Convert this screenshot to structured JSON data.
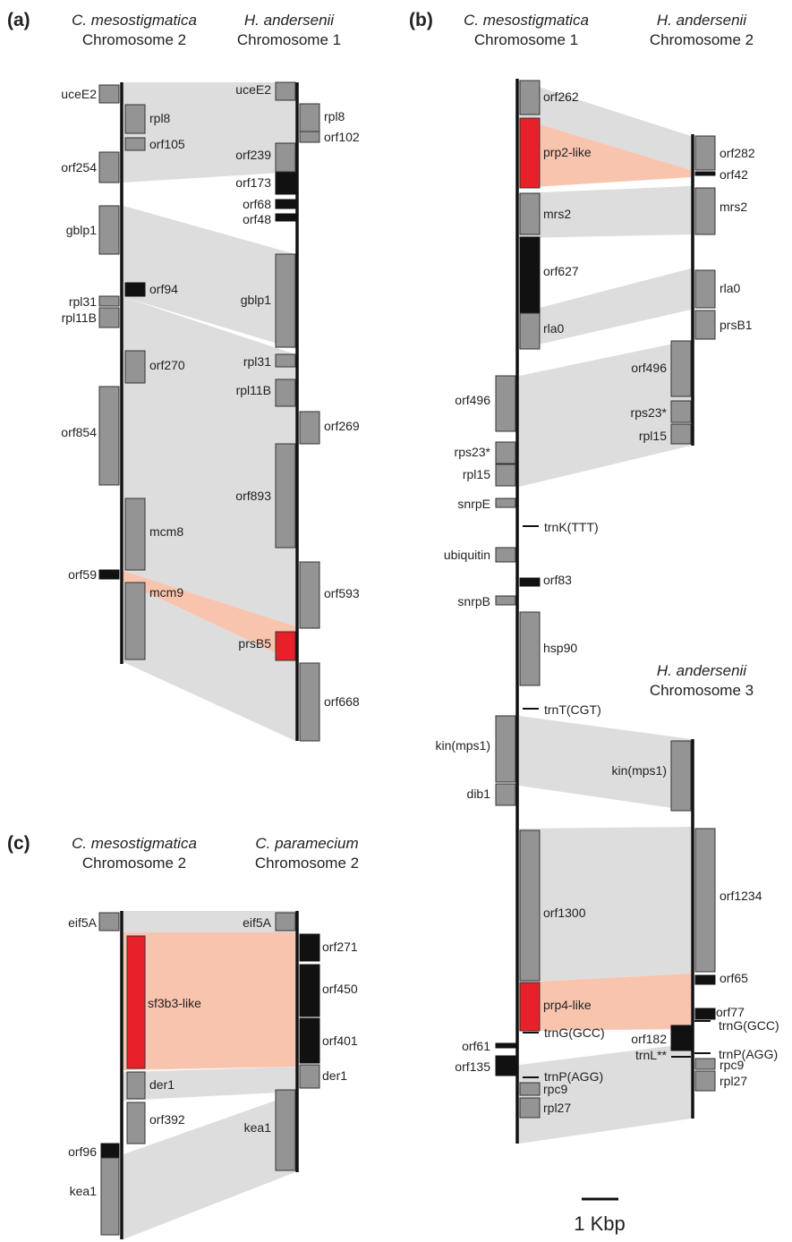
{
  "panels": [
    {
      "letter": "(a)",
      "left_species": "C. mesostigmatica",
      "left_chrom": "Chromosome 2",
      "right_species": "H. andersenii",
      "right_chrom": "Chromosome 1"
    },
    {
      "letter": "(b)",
      "left_species": "C. mesostigmatica",
      "left_chrom": "Chromosome 1",
      "right_species": "H. andersenii",
      "right_chrom": "Chromosome 2",
      "right2_species": "H. andersenii",
      "right2_chrom": "Chromosome 3"
    },
    {
      "letter": "(c)",
      "left_species": "C. mesostigmatica",
      "left_chrom": "Chromosome 2",
      "right_species": "C. paramecium",
      "right_chrom": "Chromosome 2"
    }
  ],
  "genes": {
    "a_left": [
      "uceE2",
      "rpl8",
      "orf105",
      "orf254",
      "gblp1",
      "orf94",
      "rpl31",
      "rpl11B",
      "orf270",
      "orf854",
      "mcm8",
      "orf59",
      "mcm9"
    ],
    "a_right": [
      "uceE2",
      "rpl8",
      "orf102",
      "orf239",
      "orf173",
      "orf68",
      "orf48",
      "gblp1",
      "rpl31",
      "rpl11B",
      "orf269",
      "orf893",
      "orf593",
      "prsB5",
      "orf668"
    ],
    "b_left": [
      "orf262",
      "prp2-like",
      "mrs2",
      "orf627",
      "rla0",
      "orf496",
      "rps23*",
      "rpl15",
      "snrpE",
      "trnK(TTT)",
      "ubiquitin",
      "orf83",
      "snrpB",
      "hsp90",
      "trnT(CGT)",
      "kin(mps1)",
      "dib1",
      "orf1300",
      "prp4-like",
      "trnG(GCC)",
      "orf61",
      "orf135",
      "trnP(AGG)",
      "rpc9",
      "rpl27"
    ],
    "b_right": [
      "orf282",
      "orf42",
      "mrs2",
      "rla0",
      "prsB1",
      "orf496",
      "rps23*",
      "rpl15"
    ],
    "b_right2": [
      "kin(mps1)",
      "orf1234",
      "orf65",
      "orf77",
      "trnG(GCC)",
      "orf182",
      "trnP(AGG)",
      "trnL**",
      "rpc9",
      "rpl27"
    ],
    "c_left": [
      "eif5A",
      "sf3b3-like",
      "der1",
      "orf392",
      "orf96",
      "kea1"
    ],
    "c_right": [
      "eif5A",
      "orf271",
      "orf450",
      "orf401",
      "der1",
      "kea1"
    ]
  },
  "scale_bar": {
    "label": "1 Kbp"
  },
  "colors": {
    "homolog_ribbon": "#d9d9d9",
    "highlight_ribbon": "#f9c4ae",
    "gene": "#949494",
    "orf_black": "#111111",
    "highlight_gene": "#e8202a"
  }
}
